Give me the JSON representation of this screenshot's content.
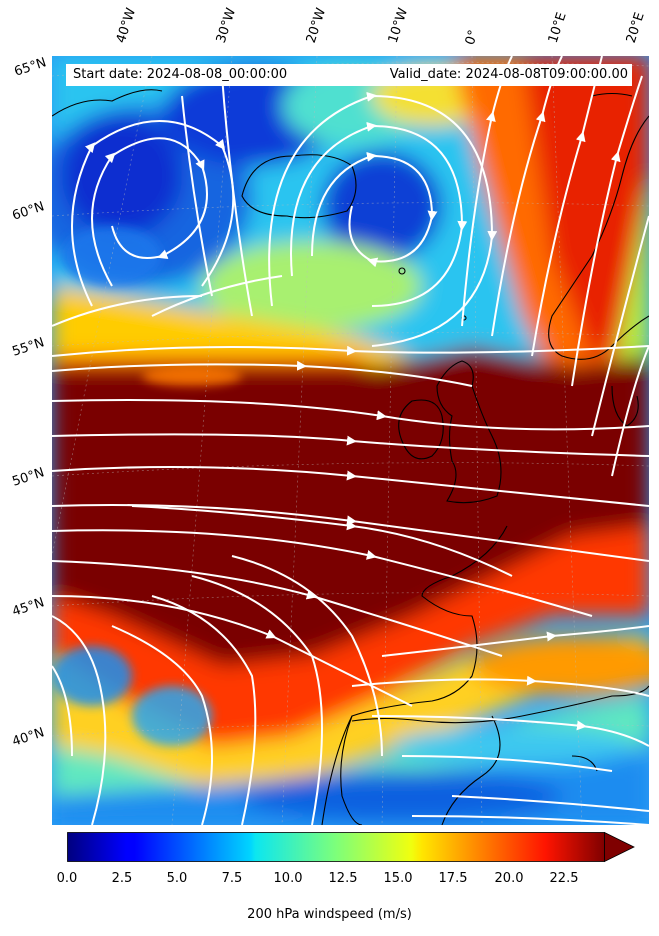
{
  "map": {
    "start_label": "Start date: 2024-08-08_00:00:00",
    "valid_label": "Valid_date: 2024-08-08T09:00:00.00",
    "field": "200 hPa windspeed",
    "overlay": "streamlines",
    "colormap": "jet",
    "longitude_labels": [
      "40°W",
      "30°W",
      "20°W",
      "10°W",
      "0°",
      "10°E",
      "20°E"
    ],
    "latitude_labels": [
      "65°N",
      "60°N",
      "55°N",
      "50°N",
      "45°N",
      "40°N"
    ]
  },
  "colorbar": {
    "label": "200 hPa windspeed (m/s)",
    "ticks": [
      "0.0",
      "2.5",
      "5.0",
      "7.5",
      "10.0",
      "12.5",
      "15.0",
      "17.5",
      "20.0",
      "22.5"
    ],
    "min": 0,
    "max": 25,
    "extend": "max"
  }
}
